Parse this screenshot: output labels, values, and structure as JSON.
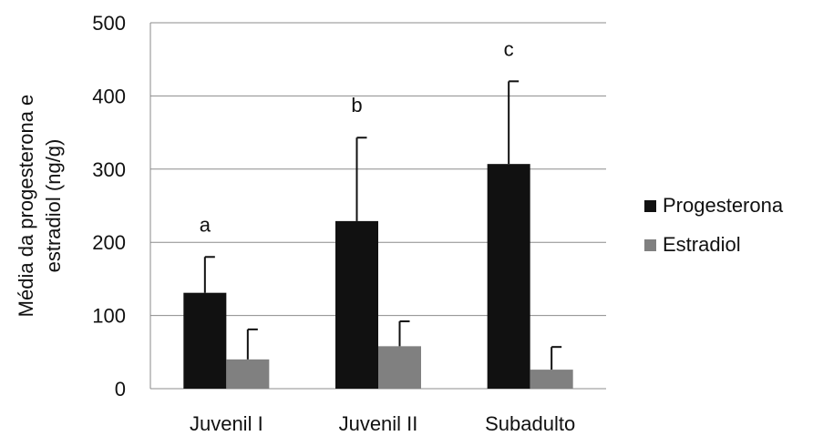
{
  "chart_data": {
    "type": "bar",
    "categories": [
      "Juvenil I",
      "Juvenil II",
      "Subadulto"
    ],
    "series": [
      {
        "name": "Progesterona",
        "color": "#111111",
        "values": [
          131,
          229,
          307
        ],
        "error_upper": [
          180,
          343,
          420
        ]
      },
      {
        "name": "Estradiol",
        "color": "#808080",
        "values": [
          40,
          58,
          26
        ],
        "error_upper": [
          81,
          92,
          57
        ]
      }
    ],
    "annotations": [
      "a",
      "b",
      "c"
    ],
    "ylabel_lines": [
      "Média da progesterona e",
      "estradiol (ng/g)"
    ],
    "ylim": [
      0,
      500
    ],
    "yticks": [
      0,
      100,
      200,
      300,
      400,
      500
    ],
    "grid": true,
    "legend_position": "right"
  }
}
